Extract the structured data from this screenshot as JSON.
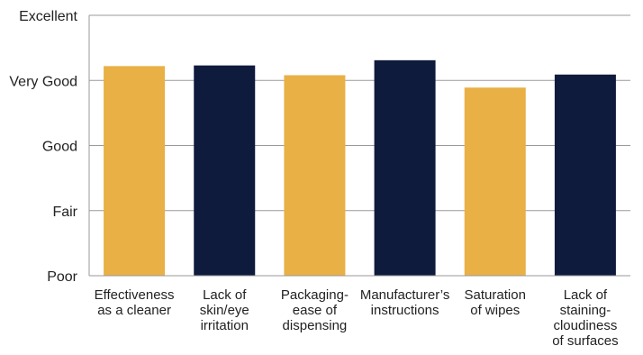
{
  "chart_data": {
    "type": "bar",
    "title": "",
    "xlabel": "",
    "ylabel": "",
    "y_tick_labels": [
      "Poor",
      "Fair",
      "Good",
      "Very Good",
      "Excellent"
    ],
    "ylim": [
      1,
      5
    ],
    "grid": true,
    "categories": [
      "Effectiveness as a cleaner",
      "Lack of skin/eye irritation",
      "Packaging-ease of dispensing",
      "Manufacturer’s instructions",
      "Saturation of wipes",
      "Lack of staining-cloudiness of surfaces"
    ],
    "category_label_lines": [
      [
        "Effectiveness",
        "as a cleaner"
      ],
      [
        "Lack of",
        "skin/eye",
        "irritation"
      ],
      [
        "Packaging-",
        "ease of",
        "dispensing"
      ],
      [
        "Manufacturer’s",
        "instructions"
      ],
      [
        "Saturation",
        "of wipes"
      ],
      [
        "Lack of",
        "staining-",
        "cloudiness",
        "of surfaces"
      ]
    ],
    "values": [
      4.22,
      4.23,
      4.08,
      4.31,
      3.89,
      4.09
    ],
    "bar_colors": [
      "#E9B046",
      "#0F1B3D",
      "#E9B046",
      "#0F1B3D",
      "#E9B046",
      "#0F1B3D"
    ]
  }
}
